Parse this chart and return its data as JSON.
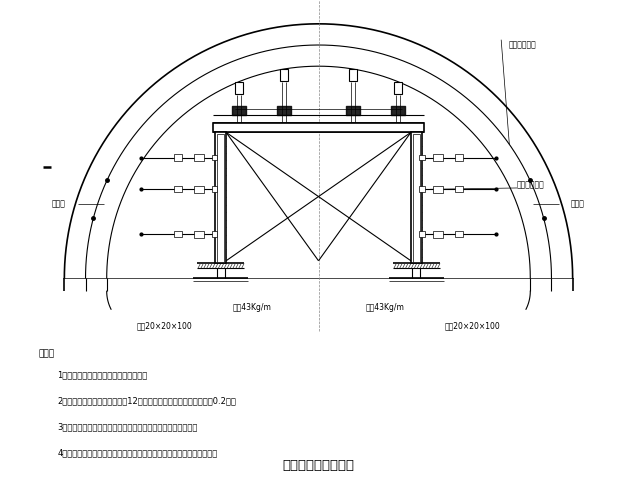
{
  "title": "模板台车结构示意图",
  "bg_color": "#ffffff",
  "line_color": "#000000",
  "tunnel_label": "隧道内轮廓线",
  "label_embedded_left": "预埋件",
  "label_embedded_right": "预埋件",
  "label_rail_left": "钢轨43Kg/m",
  "label_rail_right": "钢轨43Kg/m",
  "label_wood_left": "枕木20×20×100",
  "label_wood_right": "枕木20×20×100",
  "label_fix": "台车固定镙杆",
  "notes_title": "说明：",
  "notes": [
    "1、本图仅为示意，本图单位以厘米计；",
    "2、采用整体式模板台车，长度12米，下一组和上一组模板搭接长度0.2米；",
    "3、台车脚采用在边墙脚内的预埋件固定，以防砼灌注时内移。",
    "4、靠近拱脚处的模板支撑采用套筒镙杆，其余部分采用油缸调节模板。"
  ],
  "fig_width": 6.37,
  "fig_height": 4.78,
  "dpi": 100
}
